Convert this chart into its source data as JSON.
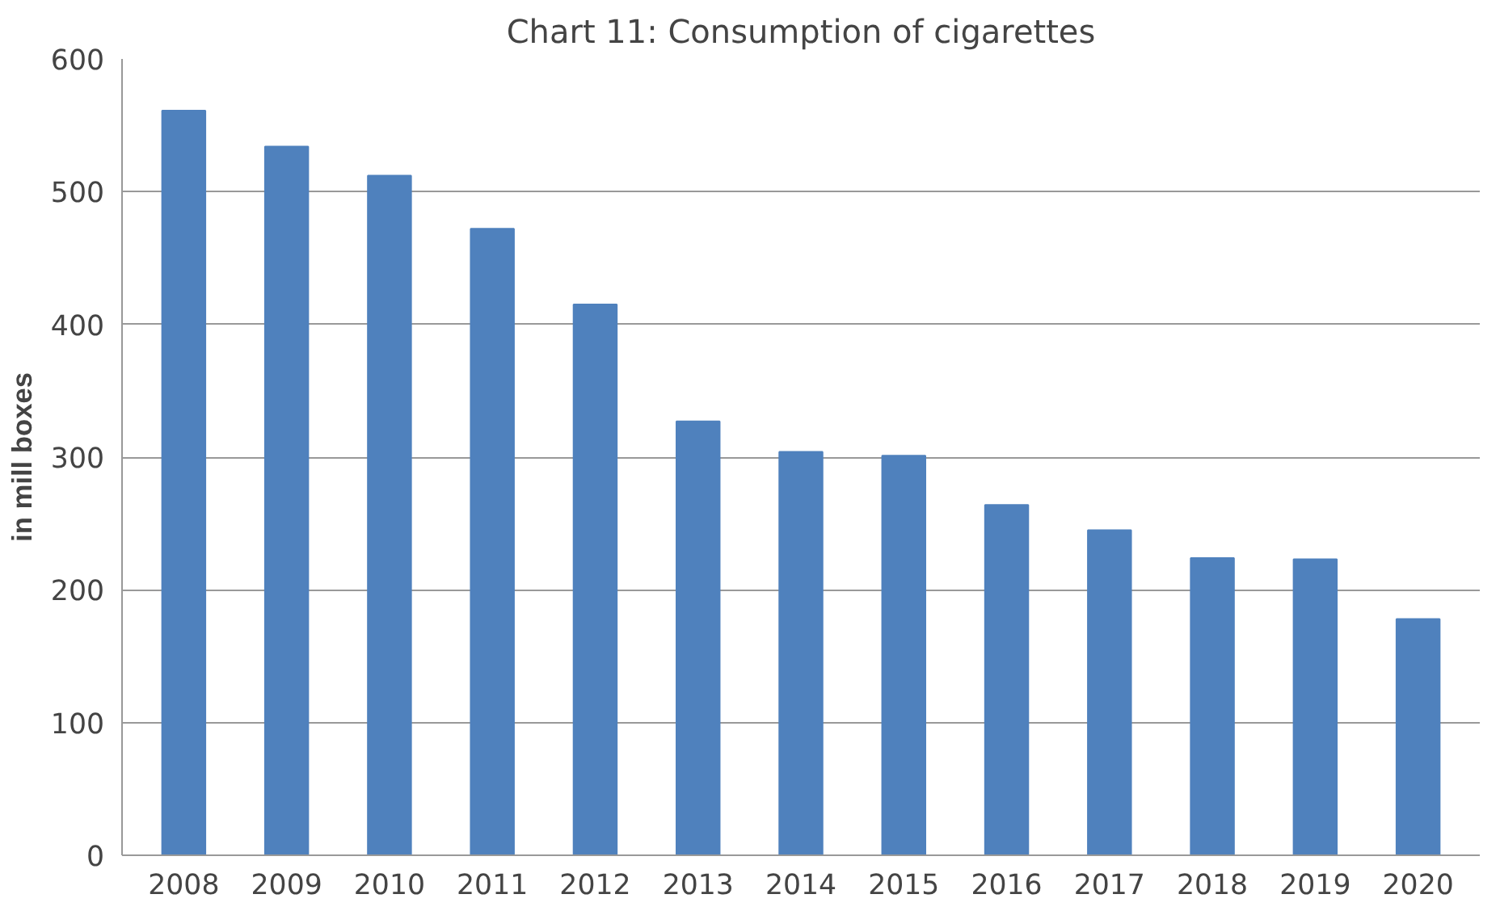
{
  "chart_data": {
    "type": "bar",
    "title": "Chart 11: Consumption of cigarettes",
    "ylabel": "in mill boxes",
    "categories": [
      "2008",
      "2009",
      "2010",
      "2011",
      "2012",
      "2013",
      "2014",
      "2015",
      "2016",
      "2017",
      "2018",
      "2019",
      "2020"
    ],
    "values": [
      561,
      534,
      512,
      472,
      415,
      327,
      304,
      301,
      264,
      245,
      224,
      223,
      178
    ],
    "color": "#4f81bd",
    "ylim": [
      0,
      600
    ],
    "yticks": [
      0,
      100,
      200,
      300,
      400,
      500,
      600
    ],
    "grid": "y"
  }
}
